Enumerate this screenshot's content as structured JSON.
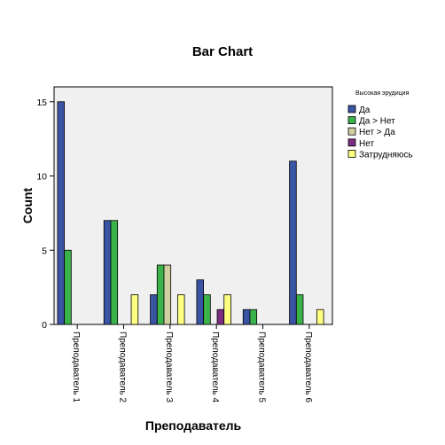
{
  "chart_data": {
    "type": "bar",
    "title": "Bar Chart",
    "xlabel": "Преподаватель",
    "ylabel": "Count",
    "ylim": [
      0,
      16
    ],
    "yticks": [
      0,
      5,
      10,
      15
    ],
    "categories": [
      "Преподаватель 1",
      "Преподаватель 2",
      "Преподаватель 3",
      "Преподаватель 4",
      "Преподаватель 5",
      "Преподаватель 6"
    ],
    "legend_title": "Высокая эрудиция",
    "legend_position": "right",
    "grid": false,
    "plot_background": "#f0f0f0",
    "series": [
      {
        "name": "Да",
        "color": "#3a54a4",
        "values": [
          15,
          7,
          2,
          3,
          1,
          11
        ]
      },
      {
        "name": "Да > Нет",
        "color": "#3bb34a",
        "values": [
          5,
          7,
          4,
          2,
          1,
          2
        ]
      },
      {
        "name": "Нет > Да",
        "color": "#cfcfa0",
        "values": [
          0,
          0,
          4,
          0,
          0,
          0
        ]
      },
      {
        "name": "Нет",
        "color": "#7d2d7f",
        "values": [
          0,
          0,
          0,
          1,
          0,
          0
        ]
      },
      {
        "name": "Затрудняюсь",
        "color": "#ffff80",
        "values": [
          0,
          2,
          2,
          2,
          0,
          1
        ]
      }
    ]
  }
}
